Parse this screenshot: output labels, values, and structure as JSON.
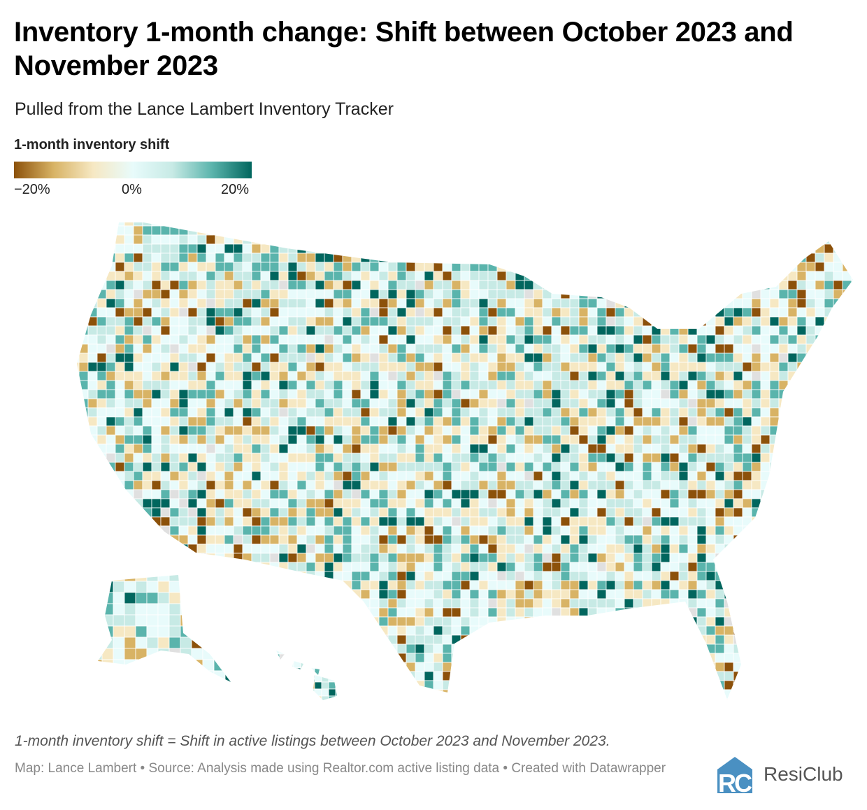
{
  "title": "Inventory 1-month change: Shift between October 2023 and November 2023",
  "subtitle": "Pulled from the Lance Lambert Inventory Tracker",
  "legend": {
    "title": "1-month inventory shift",
    "ticks": [
      "−20%",
      "0%",
      "20%"
    ],
    "range": [
      -20,
      20
    ],
    "colors": [
      "#8c510a",
      "#d8b365",
      "#f6e8c3",
      "#e8fbfb",
      "#c7eae5",
      "#5ab4ac",
      "#01665e"
    ],
    "no_data_color": "#e0e0e0"
  },
  "footnote": "1-month inventory shift = Shift in active listings between October 2023 and November 2023.",
  "source": "Map: Lance Lambert • Source: Analysis made using Realtor.com active listing data • Created with Datawrapper",
  "logo": {
    "text": "ResiClub",
    "color": "#4a90c2"
  }
}
